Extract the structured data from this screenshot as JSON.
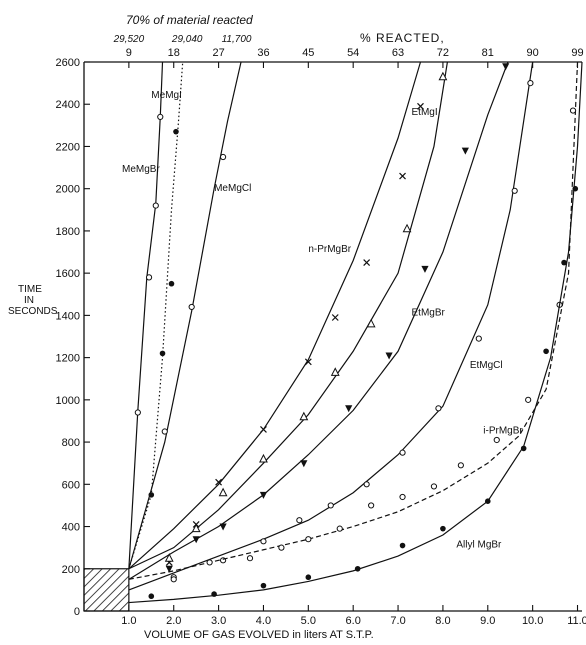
{
  "chart_data": {
    "type": "line",
    "title_top_left": "70% of material reacted",
    "top_axis_title": "% REACTED,",
    "ylabel": [
      "TIME",
      "IN",
      "SECONDS"
    ],
    "xlabel": "VOLUME OF GAS EVOLVED in liters AT S.T.P.",
    "xlim": [
      0,
      11.1
    ],
    "ylim": [
      0,
      2600
    ],
    "x_ticks": [
      1.0,
      2.0,
      3.0,
      4.0,
      5.0,
      6.0,
      7.0,
      8.0,
      9.0,
      10.0,
      11.0
    ],
    "x_tick_labels": [
      "1.0",
      "2.0",
      "3.0",
      "4.0",
      "5.0",
      "6.0",
      "7.0",
      "8.0",
      "9.0",
      "10.0",
      "11.0"
    ],
    "y_ticks": [
      0,
      200,
      400,
      600,
      800,
      1000,
      1200,
      1400,
      1600,
      1800,
      2000,
      2200,
      2400,
      2600
    ],
    "y_tick_labels": [
      "0",
      "200",
      "400",
      "600",
      "800",
      "1000",
      "1200",
      "1400",
      "1600",
      "1800",
      "2000",
      "2200",
      "2400",
      "2600"
    ],
    "top_ticks_percent": [
      9,
      18,
      27,
      36,
      45,
      54,
      63,
      72,
      81,
      90,
      99
    ],
    "top_ticks_x": [
      1.0,
      2.0,
      3.0,
      4.0,
      5.0,
      6.0,
      7.0,
      8.0,
      9.0,
      10.0,
      11.0
    ],
    "top_annotations": [
      {
        "text": "29,520",
        "x": 1.0
      },
      {
        "text": "29,040",
        "x": 2.3
      },
      {
        "text": "11,700",
        "x": 3.4
      }
    ],
    "inset_box": {
      "x": [
        0,
        1.0
      ],
      "y": [
        0,
        200
      ],
      "pattern": "hatched"
    },
    "series": [
      {
        "name": "MeMgBr",
        "style": "solid",
        "marker": "open-circle",
        "label_at": [
          0.0,
          2080
        ],
        "x": [
          1.0,
          1.2,
          1.4,
          1.6,
          1.7,
          1.75
        ],
        "y": [
          200,
          950,
          1580,
          1930,
          2340,
          2600
        ],
        "markers_x": [
          1.2,
          1.45,
          1.6,
          1.7
        ],
        "markers_y": [
          940,
          1580,
          1920,
          2340
        ]
      },
      {
        "name": "MeMgI",
        "style": "dotted",
        "marker": "filled-circle",
        "label_at": [
          1.5,
          2430
        ],
        "x": [
          1.0,
          1.5,
          1.75,
          1.95,
          2.1,
          2.2
        ],
        "y": [
          200,
          550,
          1200,
          1900,
          2300,
          2600
        ],
        "markers_x": [
          1.5,
          1.75,
          1.95,
          2.05
        ],
        "markers_y": [
          550,
          1220,
          1550,
          2270
        ]
      },
      {
        "name": "MeMgCl",
        "style": "solid",
        "marker": "open-circle",
        "label_at": [
          2.9,
          1990
        ],
        "x": [
          1.0,
          1.8,
          2.4,
          2.9,
          3.2,
          3.5
        ],
        "y": [
          200,
          800,
          1420,
          2000,
          2320,
          2600
        ],
        "markers_x": [
          1.8,
          2.4,
          3.1
        ],
        "markers_y": [
          850,
          1440,
          2150
        ]
      },
      {
        "name": "n-PrMgBr",
        "style": "solid",
        "marker": "x",
        "label_at": [
          5.0,
          1700
        ],
        "x": [
          1.0,
          2.0,
          3.0,
          4.0,
          5.0,
          6.0,
          7.0,
          7.5
        ],
        "y": [
          200,
          390,
          600,
          860,
          1190,
          1660,
          2240,
          2600
        ],
        "markers_x": [
          1.9,
          2.5,
          3.0,
          4.0,
          5.0,
          5.6,
          6.3,
          7.1,
          7.5
        ],
        "markers_y": [
          230,
          410,
          610,
          860,
          1180,
          1390,
          1650,
          2060,
          2390
        ]
      },
      {
        "name": "EtMgI",
        "style": "solid",
        "marker": "open-triangle",
        "label_at": [
          7.3,
          2350
        ],
        "x": [
          1.0,
          2.0,
          3.0,
          4.0,
          5.0,
          6.0,
          7.0,
          7.8,
          8.1
        ],
        "y": [
          200,
          300,
          480,
          700,
          930,
          1230,
          1600,
          2200,
          2600
        ],
        "markers_x": [
          1.9,
          2.5,
          3.1,
          4.0,
          4.9,
          5.6,
          6.4,
          7.2,
          8.0
        ],
        "markers_y": [
          250,
          390,
          560,
          720,
          920,
          1130,
          1360,
          1810,
          2530
        ]
      },
      {
        "name": "EtMgBr",
        "style": "solid",
        "marker": "filled-triangle",
        "label_at": [
          7.3,
          1400
        ],
        "x": [
          1.0,
          2.0,
          3.0,
          4.0,
          5.0,
          6.0,
          7.0,
          8.0,
          9.0,
          9.45
        ],
        "y": [
          150,
          280,
          400,
          550,
          740,
          950,
          1230,
          1700,
          2350,
          2600
        ],
        "markers_x": [
          1.9,
          2.5,
          3.1,
          4.0,
          4.9,
          5.9,
          6.8,
          7.6,
          8.5,
          9.4
        ],
        "markers_y": [
          200,
          340,
          400,
          550,
          700,
          960,
          1210,
          1620,
          2180,
          2580
        ]
      },
      {
        "name": "EtMgCl",
        "style": "solid",
        "marker": "open-circle",
        "label_at": [
          8.6,
          1150
        ],
        "x": [
          1.0,
          2.0,
          3.0,
          4.0,
          5.0,
          6.0,
          7.0,
          8.0,
          9.0,
          9.5,
          10.0
        ],
        "y": [
          100,
          180,
          260,
          340,
          430,
          560,
          740,
          970,
          1450,
          1900,
          2600
        ],
        "markers_x": [
          2.0,
          3.1,
          4.0,
          4.8,
          5.5,
          6.3,
          7.1,
          7.9,
          8.8,
          9.6,
          9.95
        ],
        "markers_y": [
          160,
          240,
          330,
          430,
          500,
          600,
          750,
          960,
          1290,
          1990,
          2500
        ]
      },
      {
        "name": "i-PrMgBr",
        "style": "dashed",
        "marker": "open-circle",
        "label_at": [
          8.9,
          840
        ],
        "x": [
          1.0,
          2.0,
          3.0,
          4.0,
          5.0,
          6.0,
          7.0,
          8.0,
          9.0,
          9.7,
          10.3,
          10.8,
          11.0
        ],
        "y": [
          150,
          190,
          240,
          290,
          340,
          400,
          470,
          570,
          700,
          830,
          1050,
          1600,
          2600
        ],
        "markers_x": [
          2.0,
          2.8,
          3.7,
          4.4,
          5.0,
          5.7,
          6.4,
          7.1,
          7.8,
          8.4,
          9.2,
          9.9,
          10.6,
          10.9
        ],
        "markers_y": [
          150,
          230,
          250,
          300,
          340,
          390,
          500,
          540,
          590,
          690,
          810,
          1000,
          1450,
          2370
        ]
      },
      {
        "name": "Allyl MgBr",
        "style": "solid",
        "marker": "filled-circle",
        "label_at": [
          8.3,
          300
        ],
        "x": [
          1.0,
          2.0,
          3.0,
          4.0,
          5.0,
          6.0,
          7.0,
          8.0,
          9.0,
          9.8,
          10.4,
          10.8,
          11.0,
          11.1
        ],
        "y": [
          40,
          55,
          75,
          100,
          140,
          190,
          260,
          360,
          520,
          780,
          1200,
          1700,
          2200,
          2600
        ],
        "markers_x": [
          1.5,
          2.9,
          4.0,
          5.0,
          6.1,
          7.1,
          8.0,
          9.0,
          9.8,
          10.3,
          10.7,
          10.95
        ],
        "markers_y": [
          70,
          80,
          120,
          160,
          200,
          310,
          390,
          520,
          770,
          1230,
          1650,
          2000
        ]
      }
    ]
  }
}
